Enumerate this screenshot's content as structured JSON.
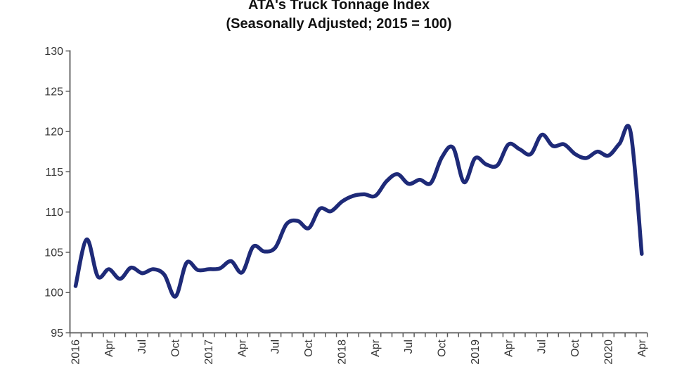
{
  "chart_data": {
    "type": "line",
    "title": "ATA's Truck Tonnage Index",
    "subtitle": "(Seasonally Adjusted; 2015 = 100)",
    "xlabel": "",
    "ylabel": "",
    "ylim": [
      95,
      130
    ],
    "y_ticks": [
      95,
      100,
      105,
      110,
      115,
      120,
      125,
      130
    ],
    "grid": false,
    "legend": "none",
    "smooth": true,
    "line_color": "#1e2a78",
    "axis_color": "#595959",
    "tick_label_color": "#333333",
    "x_tick_label_every": 3,
    "x_tick_labels": [
      "2016",
      "Apr",
      "Jul",
      "Oct",
      "2017",
      "Apr",
      "Jul",
      "Oct",
      "2018",
      "Apr",
      "Jul",
      "Oct",
      "2019",
      "Apr",
      "Jul",
      "Oct",
      "2020",
      "Apr"
    ],
    "categories": [
      "Jan 2016",
      "Feb 2016",
      "Mar 2016",
      "Apr 2016",
      "May 2016",
      "Jun 2016",
      "Jul 2016",
      "Aug 2016",
      "Sep 2016",
      "Oct 2016",
      "Nov 2016",
      "Dec 2016",
      "Jan 2017",
      "Feb 2017",
      "Mar 2017",
      "Apr 2017",
      "May 2017",
      "Jun 2017",
      "Jul 2017",
      "Aug 2017",
      "Sep 2017",
      "Oct 2017",
      "Nov 2017",
      "Dec 2017",
      "Jan 2018",
      "Feb 2018",
      "Mar 2018",
      "Apr 2018",
      "May 2018",
      "Jun 2018",
      "Jul 2018",
      "Aug 2018",
      "Sep 2018",
      "Oct 2018",
      "Nov 2018",
      "Dec 2018",
      "Jan 2019",
      "Feb 2019",
      "Mar 2019",
      "Apr 2019",
      "May 2019",
      "Jun 2019",
      "Jul 2019",
      "Aug 2019",
      "Sep 2019",
      "Oct 2019",
      "Nov 2019",
      "Dec 2019",
      "Jan 2020",
      "Feb 2020",
      "Mar 2020",
      "Apr 2020"
    ],
    "values": [
      100.8,
      106.6,
      102.0,
      102.9,
      101.7,
      103.1,
      102.4,
      102.9,
      102.2,
      99.5,
      103.7,
      102.8,
      102.9,
      103.0,
      103.9,
      102.5,
      105.7,
      105.1,
      105.6,
      108.5,
      108.9,
      108.0,
      110.4,
      110.1,
      111.3,
      112.0,
      112.2,
      112.0,
      113.8,
      114.7,
      113.5,
      114.0,
      113.6,
      116.8,
      118.0,
      113.7,
      116.7,
      115.9,
      115.8,
      118.4,
      117.8,
      117.2,
      119.6,
      118.2,
      118.4,
      117.2,
      116.7,
      117.5,
      117.0,
      118.5,
      119.9,
      104.8
    ]
  }
}
